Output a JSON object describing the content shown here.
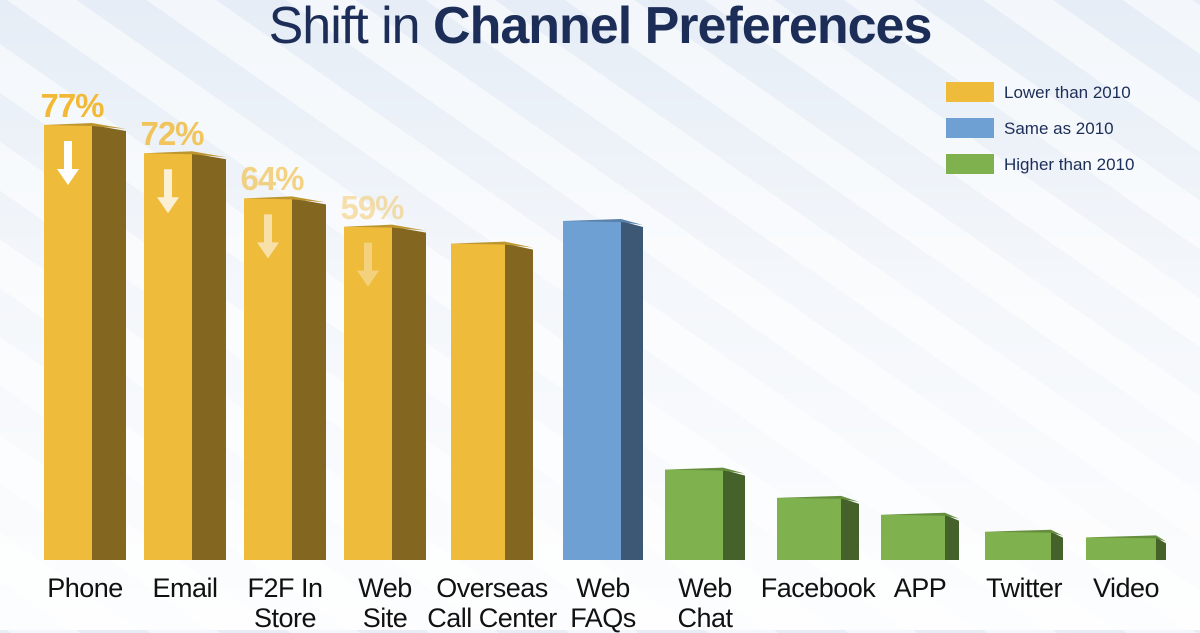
{
  "title": {
    "prefix": "Shift in ",
    "bold": "Channel Preferences"
  },
  "colors": {
    "lower": "#eebb3b",
    "same": "#6ea0d3",
    "higher": "#7fb24f",
    "title": "#1c2d58"
  },
  "legend": [
    {
      "key": "lower",
      "label": "Lower than 2010"
    },
    {
      "key": "same",
      "label": "Same as 2010"
    },
    {
      "key": "higher",
      "label": "Higher than 2010"
    }
  ],
  "chart_data": {
    "type": "bar",
    "title": "Shift in Channel Preferences",
    "categories": [
      "Phone",
      "Email",
      "F2F In Store",
      "Web Site",
      "Overseas Call Center",
      "Web FAQs",
      "Web Chat",
      "Facebook",
      "APP",
      "Twitter",
      "Video"
    ],
    "category_lines": [
      [
        "Phone"
      ],
      [
        "Email"
      ],
      [
        "F2F In",
        "Store"
      ],
      [
        "Web",
        "Site"
      ],
      [
        "Overseas",
        "Call Center"
      ],
      [
        "Web",
        "FAQs"
      ],
      [
        "Web",
        "Chat"
      ],
      [
        "Facebook"
      ],
      [
        "APP"
      ],
      [
        "Twitter"
      ],
      [
        "Video"
      ]
    ],
    "values": [
      77,
      72,
      64,
      59,
      56,
      60,
      16,
      11,
      8,
      5,
      4
    ],
    "value_labels": [
      "77%",
      "72%",
      "64%",
      "59%",
      "",
      "",
      "",
      "",
      "",
      "",
      ""
    ],
    "down_arrow": [
      true,
      true,
      true,
      true,
      false,
      false,
      false,
      false,
      false,
      false,
      false
    ],
    "status": [
      "lower",
      "lower",
      "lower",
      "lower",
      "lower",
      "same",
      "higher",
      "higher",
      "higher",
      "higher",
      "higher"
    ],
    "legend_position": "top-right",
    "grid": false
  }
}
